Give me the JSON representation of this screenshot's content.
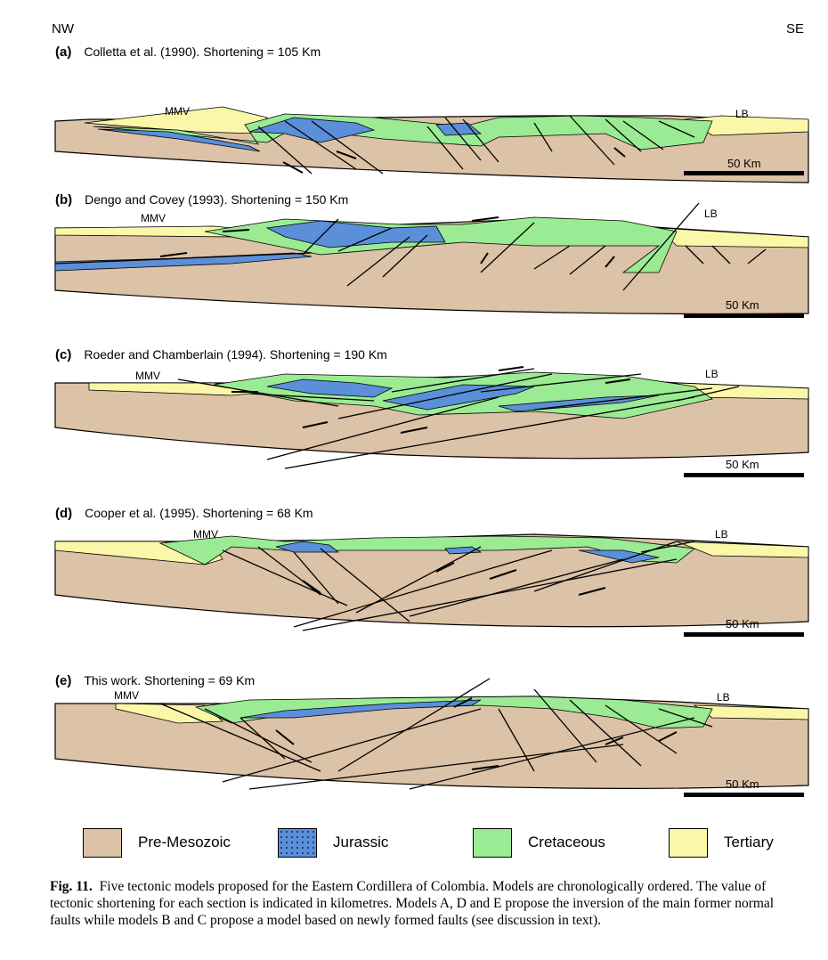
{
  "directions": {
    "left": "NW",
    "right": "SE"
  },
  "panels": [
    {
      "letter": "(a)",
      "title": "Colletta et al. (1990). Shortening = 105 Km",
      "left_label": "MMV",
      "right_label": "LB",
      "scale_label": "50 Km"
    },
    {
      "letter": "(b)",
      "title": "Dengo and Covey (1993). Shortening = 150 Km",
      "left_label": "MMV",
      "right_label": "LB",
      "scale_label": "50 Km"
    },
    {
      "letter": "(c)",
      "title": "Roeder and Chamberlain (1994). Shortening = 190 Km",
      "left_label": "MMV",
      "right_label": "LB",
      "scale_label": "50 Km"
    },
    {
      "letter": "(d)",
      "title": "Cooper et al. (1995). Shortening = 68 Km",
      "left_label": "MMV",
      "right_label": "LB",
      "scale_label": "50 Km"
    },
    {
      "letter": "(e)",
      "title": "This work. Shortening = 69 Km",
      "left_label": "MMV",
      "right_label": "LB",
      "scale_label": "50 Km"
    }
  ],
  "legend": [
    {
      "key": "premesozoic",
      "label": "Pre-Mesozoic",
      "color": "#dcc2a6"
    },
    {
      "key": "jurassic",
      "label": "Jurassic",
      "color": "#5b8fd9"
    },
    {
      "key": "cretaceous",
      "label": "Cretaceous",
      "color": "#9aeb93"
    },
    {
      "key": "tertiary",
      "label": "Tertiary",
      "color": "#fbf7a8"
    }
  ],
  "caption": {
    "label": "Fig. 11.",
    "text": "Five tectonic models proposed for the Eastern Cordillera of Colombia. Models are chronologically ordered. The value of tectonic shortening for each section is indicated in kilometres. Models A, D and E propose the inversion of the main former normal faults while models B and C propose a model based on newly formed faults (see discussion in text)."
  }
}
